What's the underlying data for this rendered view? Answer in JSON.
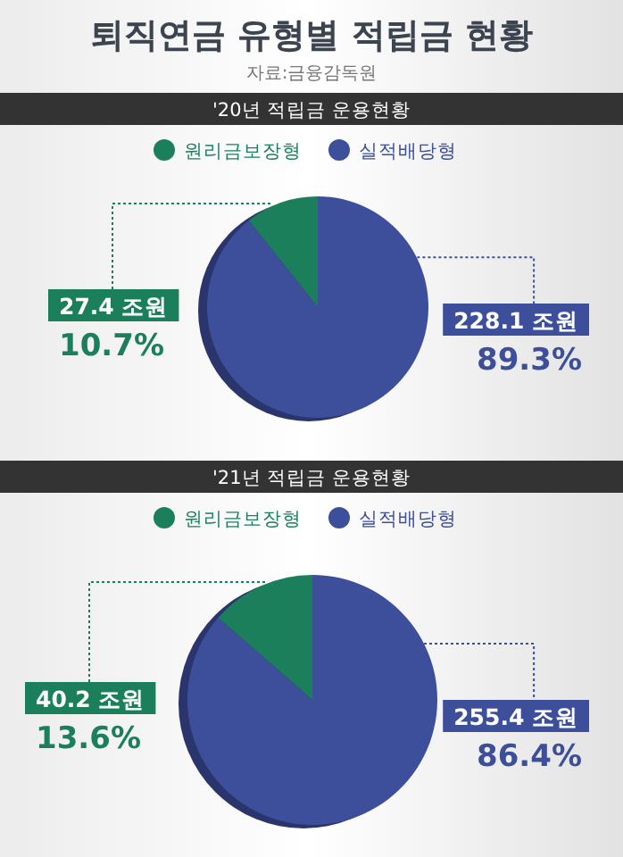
{
  "chart_data": [
    {
      "type": "pie",
      "title": "퇴직연금 유형별 적립금 현황",
      "subtitle": "자료:금융감독원",
      "legend_title": "'20년 적립금 운용현황",
      "legend": "top",
      "categories": [
        "원리금보장형",
        "실적배당형"
      ],
      "values": [
        27.4,
        228.1
      ],
      "colors": [
        "#1b7f5c",
        "#3d4f9a"
      ],
      "value_labels": [
        "27.4 조원\n10.7%",
        "228.1 조원\n89.3%"
      ]
    },
    {
      "type": "pie",
      "legend_title": "'21년 적립금 운용현황",
      "legend": "top",
      "categories": [
        "원리금보장형",
        "실적배당형"
      ],
      "values": [
        40.2,
        255.4
      ],
      "colors": [
        "#1b7f5c",
        "#3d4f9a"
      ],
      "value_labels": [
        "40.2 조원\n13.6%",
        "255.4 조원\n86.4%"
      ]
    }
  ]
}
